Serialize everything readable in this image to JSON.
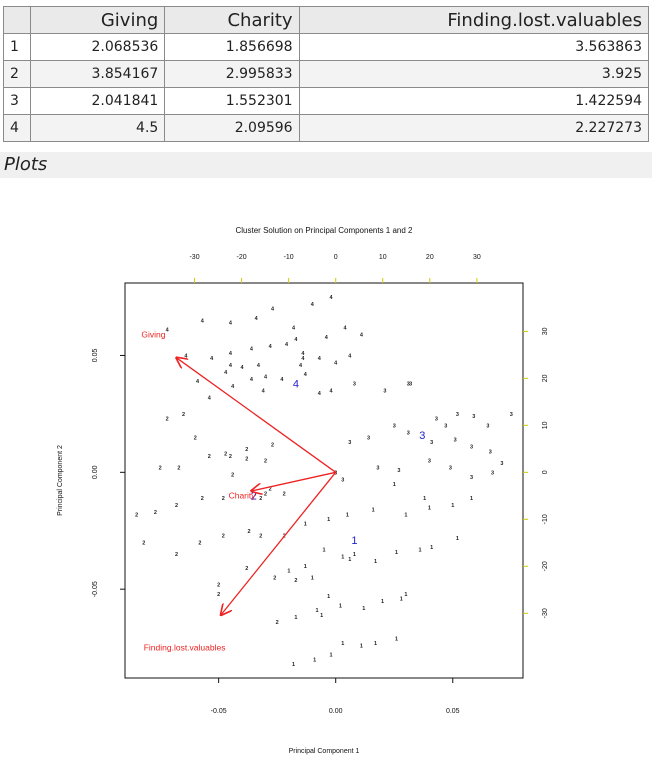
{
  "table": {
    "columns": [
      "",
      "Giving",
      "Charity",
      "Finding.lost.valuables"
    ],
    "rows": [
      [
        "1",
        "2.068536",
        "1.856698",
        "3.563863"
      ],
      [
        "2",
        "3.854167",
        "2.995833",
        "3.925"
      ],
      [
        "3",
        "2.041841",
        "1.552301",
        "1.422594"
      ],
      [
        "4",
        "4.5",
        "2.09596",
        "2.227273"
      ]
    ]
  },
  "section_label": "Plots",
  "chart_data": {
    "type": "scatter",
    "title": "Cluster Solution on Principal Components 1 and 2",
    "xlabel": "Principal Component 1",
    "ylabel": "Principal Component 2",
    "xlim": [
      -0.09,
      0.08
    ],
    "ylim": [
      -0.088,
      0.081
    ],
    "x_ticks": [
      -0.05,
      0.0,
      0.05
    ],
    "x_tick_labels": [
      "-0.05",
      "0.00",
      "0.05"
    ],
    "y_ticks": [
      -0.05,
      0.0,
      0.05
    ],
    "y_tick_labels": [
      "-0.05",
      "0.00",
      "0.05"
    ],
    "top_axis_ticks": [
      -30,
      -20,
      -10,
      0,
      10,
      20,
      30
    ],
    "right_axis_ticks": [
      -30,
      -20,
      -10,
      0,
      10,
      20,
      30
    ],
    "secondary_scale_per_unit": 0.00201,
    "colors": {
      "points": "#222222",
      "centroids": "#2222cc",
      "arrows": "#ee2222",
      "secondary_axis": "#cccc00"
    },
    "series": [
      {
        "cluster": "1",
        "points": [
          [
            0.025,
            -0.005
          ],
          [
            0.038,
            -0.011
          ],
          [
            0.05,
            -0.014
          ],
          [
            0.058,
            -0.011
          ],
          [
            0.005,
            -0.018
          ],
          [
            0.016,
            -0.016
          ],
          [
            0.03,
            -0.018
          ],
          [
            0.04,
            -0.015
          ],
          [
            -0.003,
            -0.02
          ],
          [
            -0.013,
            -0.022
          ],
          [
            0.008,
            -0.035
          ],
          [
            0.017,
            -0.038
          ],
          [
            0.026,
            -0.034
          ],
          [
            0.036,
            -0.033
          ],
          [
            0.041,
            -0.032
          ],
          [
            0.052,
            -0.028
          ],
          [
            -0.005,
            -0.033
          ],
          [
            0.003,
            -0.036
          ],
          [
            0.006,
            -0.037
          ],
          [
            -0.013,
            -0.04
          ],
          [
            -0.02,
            -0.042
          ],
          [
            -0.01,
            -0.045
          ],
          [
            -0.003,
            -0.053
          ],
          [
            0.002,
            -0.057
          ],
          [
            0.012,
            -0.058
          ],
          [
            0.02,
            -0.055
          ],
          [
            0.03,
            -0.052
          ],
          [
            0.028,
            -0.054
          ],
          [
            -0.017,
            -0.062
          ],
          [
            -0.008,
            -0.059
          ],
          [
            0.003,
            -0.073
          ],
          [
            0.011,
            -0.074
          ],
          [
            0.017,
            -0.073
          ],
          [
            0.026,
            -0.071
          ],
          [
            -0.018,
            -0.082
          ],
          [
            -0.009,
            -0.08
          ],
          [
            -0.002,
            -0.078
          ],
          [
            -0.006,
            -0.061
          ]
        ]
      },
      {
        "cluster": "2",
        "points": [
          [
            -0.044,
            -0.001
          ],
          [
            -0.072,
            0.023
          ],
          [
            -0.065,
            0.025
          ],
          [
            -0.06,
            0.015
          ],
          [
            -0.045,
            0.007
          ],
          [
            -0.038,
            0.01
          ],
          [
            -0.027,
            0.012
          ],
          [
            -0.067,
            0.002
          ],
          [
            -0.075,
            0.002
          ],
          [
            -0.054,
            0.007
          ],
          [
            -0.047,
            0.008
          ],
          [
            -0.038,
            0.006
          ],
          [
            -0.03,
            0.005
          ],
          [
            -0.048,
            -0.011
          ],
          [
            -0.057,
            -0.011
          ],
          [
            -0.068,
            -0.014
          ],
          [
            -0.077,
            -0.017
          ],
          [
            -0.085,
            -0.018
          ],
          [
            -0.03,
            -0.009
          ],
          [
            -0.022,
            -0.009
          ],
          [
            -0.028,
            -0.007
          ],
          [
            -0.032,
            -0.011
          ],
          [
            -0.037,
            -0.025
          ],
          [
            -0.048,
            -0.027
          ],
          [
            -0.058,
            -0.03
          ],
          [
            -0.068,
            -0.035
          ],
          [
            -0.082,
            -0.03
          ],
          [
            -0.032,
            -0.027
          ],
          [
            -0.022,
            -0.027
          ],
          [
            -0.038,
            -0.041
          ],
          [
            -0.05,
            -0.048
          ],
          [
            -0.026,
            -0.045
          ],
          [
            -0.017,
            -0.046
          ],
          [
            -0.025,
            -0.064
          ],
          [
            -0.05,
            -0.052
          ]
        ]
      },
      {
        "cluster": "3",
        "points": [
          [
            0.032,
            0.038
          ],
          [
            0.043,
            0.023
          ],
          [
            0.047,
            0.02
          ],
          [
            0.052,
            0.025
          ],
          [
            0.059,
            0.024
          ],
          [
            0.065,
            0.02
          ],
          [
            0.075,
            0.025
          ],
          [
            0.008,
            0.038
          ],
          [
            0.021,
            0.035
          ],
          [
            0.031,
            0.038
          ],
          [
            0.025,
            0.02
          ],
          [
            0.031,
            0.017
          ],
          [
            0.041,
            0.013
          ],
          [
            0.051,
            0.014
          ],
          [
            0.058,
            0.011
          ],
          [
            0.066,
            0.009
          ],
          [
            0.071,
            0.004
          ],
          [
            0.067,
            0.0
          ],
          [
            0.058,
            -0.002
          ],
          [
            0.049,
            0.002
          ],
          [
            0.04,
            0.005
          ],
          [
            0.027,
            0.001
          ],
          [
            0.018,
            0.002
          ],
          [
            0.014,
            0.015
          ],
          [
            0.006,
            0.013
          ],
          [
            0.003,
            -0.003
          ],
          [
            0.0,
            0.0
          ]
        ]
      },
      {
        "cluster": "4",
        "points": [
          [
            -0.002,
            0.075
          ],
          [
            -0.01,
            0.072
          ],
          [
            -0.027,
            0.07
          ],
          [
            -0.034,
            0.066
          ],
          [
            -0.045,
            0.064
          ],
          [
            -0.057,
            0.065
          ],
          [
            -0.072,
            0.061
          ],
          [
            -0.018,
            0.062
          ],
          [
            -0.004,
            0.058
          ],
          [
            0.004,
            0.062
          ],
          [
            0.011,
            0.059
          ],
          [
            -0.017,
            0.057
          ],
          [
            -0.028,
            0.054
          ],
          [
            -0.036,
            0.053
          ],
          [
            -0.045,
            0.051
          ],
          [
            -0.053,
            0.049
          ],
          [
            -0.064,
            0.05
          ],
          [
            -0.014,
            0.051
          ],
          [
            -0.007,
            0.049
          ],
          [
            0.0,
            0.047
          ],
          [
            -0.033,
            0.046
          ],
          [
            -0.03,
            0.041
          ],
          [
            -0.036,
            0.04
          ],
          [
            -0.044,
            0.037
          ],
          [
            -0.054,
            0.032
          ],
          [
            -0.059,
            0.039
          ],
          [
            -0.023,
            0.04
          ],
          [
            -0.013,
            0.042
          ],
          [
            -0.007,
            0.034
          ],
          [
            -0.002,
            0.035
          ],
          [
            -0.015,
            0.046
          ],
          [
            0.006,
            0.05
          ],
          [
            -0.014,
            0.049
          ],
          [
            -0.047,
            0.043
          ],
          [
            -0.021,
            0.055
          ],
          [
            -0.04,
            0.045
          ],
          [
            -0.031,
            0.035
          ],
          [
            -0.045,
            0.046
          ]
        ]
      }
    ],
    "centroids": [
      {
        "label": "1",
        "x": 0.008,
        "y": -0.029
      },
      {
        "label": "2",
        "x": -0.035,
        "y": -0.01
      },
      {
        "label": "3",
        "x": 0.037,
        "y": 0.016
      },
      {
        "label": "4",
        "x": -0.017,
        "y": 0.038
      }
    ],
    "arrows": [
      {
        "name": "Giving",
        "x": -0.068,
        "y": 0.049
      },
      {
        "name": "Charity",
        "x": -0.036,
        "y": -0.008
      },
      {
        "name": "Finding.lost.valuables",
        "x": -0.049,
        "y": -0.061
      }
    ]
  }
}
